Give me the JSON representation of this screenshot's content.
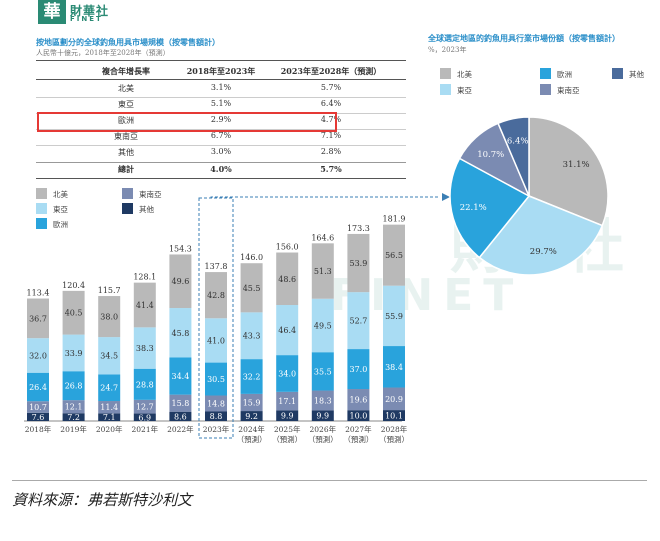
{
  "brand": {
    "logo_char": "華",
    "name_cn": "財華社",
    "name_en": "FINET"
  },
  "watermark": {
    "cn": "財華社",
    "en": "FINET"
  },
  "left_panel": {
    "title": "按地區劃分的全球釣魚用具市場規模（按零售額計）",
    "subtitle": "人民幣十億元，2018年至2028年（預測）"
  },
  "cagr_table": {
    "headers": [
      "複合年增長率",
      "2018年至2023年",
      "2023年至2028年（預測）"
    ],
    "rows": [
      {
        "region": "北美",
        "v1": "3.1%",
        "v2": "5.7%"
      },
      {
        "region": "東亞",
        "v1": "5.1%",
        "v2": "6.4%"
      },
      {
        "region": "歐洲",
        "v1": "2.9%",
        "v2": "4.7%"
      },
      {
        "region": "東南亞",
        "v1": "6.7%",
        "v2": "7.1%"
      },
      {
        "region": "其他",
        "v1": "3.0%",
        "v2": "2.8%"
      },
      {
        "region": "總計",
        "v1": "4.0%",
        "v2": "5.7%"
      }
    ]
  },
  "bar_legend": [
    {
      "label": "北美",
      "color": "#b9b9b9"
    },
    {
      "label": "東南亞",
      "color": "#7b8bb2"
    },
    {
      "label": "東亞",
      "color": "#a9dcf3"
    },
    {
      "label": "其他",
      "color": "#1f3a63"
    },
    {
      "label": "歐洲",
      "color": "#29a3dc"
    }
  ],
  "right_panel": {
    "title": "全球選定地區的釣魚用具行業市場份額（按零售額計）",
    "subtitle": "%，2023年"
  },
  "pie_legend": [
    {
      "label": "北美",
      "color": "#b9b9b9"
    },
    {
      "label": "歐洲",
      "color": "#29a3dc"
    },
    {
      "label": "其他",
      "color": "#4a6b9c"
    },
    {
      "label": "東亞",
      "color": "#a9dcf3"
    },
    {
      "label": "東南亞",
      "color": "#7b8bb2"
    }
  ],
  "source": "資料來源：弗若斯特沙利文",
  "chart_data": [
    {
      "type": "bar",
      "stacked": true,
      "categories": [
        "2018年",
        "2019年",
        "2020年",
        "2021年",
        "2022年",
        "2023年",
        "2024年\n（預測）",
        "2025年\n（預測）",
        "2026年\n（預測）",
        "2027年\n（預測）",
        "2028年\n（預測）"
      ],
      "series": [
        {
          "name": "其他",
          "color": "#1f3a63",
          "values": [
            7.6,
            7.2,
            7.1,
            6.9,
            8.6,
            8.8,
            9.2,
            9.9,
            9.9,
            10.0,
            10.1
          ]
        },
        {
          "name": "東南亞",
          "color": "#7b8bb2",
          "values": [
            10.7,
            12.1,
            11.4,
            12.7,
            15.8,
            14.8,
            15.9,
            17.1,
            18.3,
            19.6,
            20.9
          ]
        },
        {
          "name": "歐洲",
          "color": "#29a3dc",
          "values": [
            26.4,
            26.8,
            24.7,
            28.8,
            34.4,
            30.5,
            32.2,
            34.0,
            35.5,
            37.0,
            38.4
          ]
        },
        {
          "name": "東亞",
          "color": "#a9dcf3",
          "values": [
            32.0,
            33.9,
            34.5,
            38.3,
            45.8,
            41.0,
            43.3,
            46.4,
            49.5,
            52.7,
            55.9
          ]
        },
        {
          "name": "北美",
          "color": "#b9b9b9",
          "values": [
            36.7,
            40.5,
            38.0,
            41.4,
            49.6,
            42.8,
            45.5,
            48.6,
            51.3,
            53.9,
            56.5
          ]
        }
      ],
      "totals": [
        113.4,
        120.4,
        115.7,
        128.1,
        154.3,
        137.8,
        146.0,
        156.0,
        164.6,
        173.3,
        181.9
      ],
      "highlight_category": "2023年"
    },
    {
      "type": "pie",
      "title": "全球選定地區的釣魚用具行業市場份額（按零售額計）",
      "slices": [
        {
          "label": "北美",
          "value": 31.1,
          "color": "#b9b9b9"
        },
        {
          "label": "東亞",
          "value": 29.7,
          "color": "#a9dcf3"
        },
        {
          "label": "歐洲",
          "value": 22.1,
          "color": "#29a3dc"
        },
        {
          "label": "東南亞",
          "value": 10.7,
          "color": "#7b8bb2"
        },
        {
          "label": "其他",
          "value": 6.4,
          "color": "#4a6b9c"
        }
      ]
    }
  ]
}
